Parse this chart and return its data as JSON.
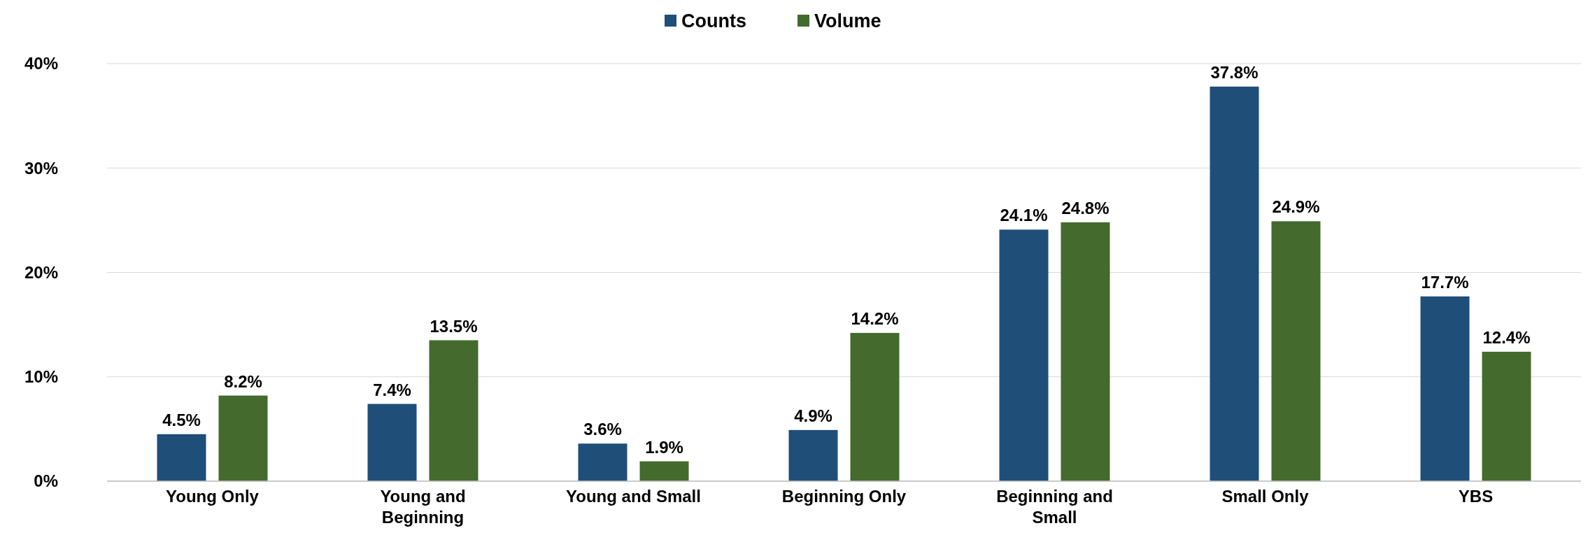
{
  "chart_data": {
    "type": "bar",
    "categories": [
      "Young Only",
      "Young and Beginning",
      "Young and Small",
      "Beginning Only",
      "Beginning and Small",
      "Small Only",
      "YBS"
    ],
    "series": [
      {
        "name": "Counts",
        "color": "#1f4e79",
        "values": [
          4.5,
          7.4,
          3.6,
          4.9,
          24.1,
          37.8,
          17.7
        ]
      },
      {
        "name": "Volume",
        "color": "#446a2e",
        "values": [
          8.2,
          13.5,
          1.9,
          14.2,
          24.8,
          24.9,
          12.4
        ]
      }
    ],
    "value_labels": [
      [
        "4.5%",
        "7.4%",
        "3.6%",
        "4.9%",
        "24.1%",
        "37.8%",
        "17.7%"
      ],
      [
        "8.2%",
        "13.5%",
        "1.9%",
        "14.2%",
        "24.8%",
        "24.9%",
        "12.4%"
      ]
    ],
    "ylim": [
      0,
      40
    ],
    "yticks": [
      {
        "value": 0,
        "label": "0%"
      },
      {
        "value": 10,
        "label": "10%"
      },
      {
        "value": 20,
        "label": "20%"
      },
      {
        "value": 30,
        "label": "30%"
      },
      {
        "value": 40,
        "label": "40%"
      }
    ],
    "grid": "y",
    "legend": "top"
  }
}
